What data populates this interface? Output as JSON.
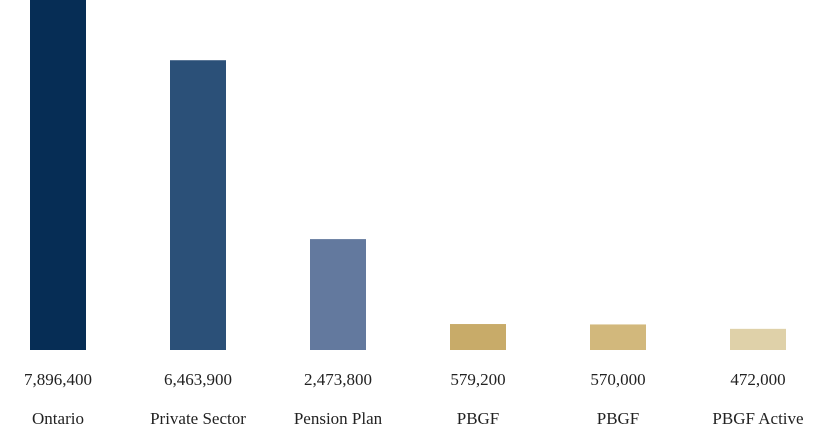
{
  "chart_data": {
    "type": "bar",
    "categories": [
      "Ontario",
      "Private Sector",
      "Pension Plan",
      "PBGF",
      "PBGF",
      "PBGF Active"
    ],
    "values": [
      7896400,
      6463900,
      2473800,
      579200,
      570000,
      472000
    ],
    "value_labels": [
      "7,896,400",
      "6,463,900",
      "2,473,800",
      "579,200",
      "570,000",
      "472,000"
    ],
    "colors": [
      "#062d55",
      "#2b5078",
      "#63799e",
      "#c8ab69",
      "#d2b87c",
      "#dfd1a9"
    ],
    "title": "",
    "xlabel": "",
    "ylabel": "",
    "ylim": [
      0,
      7896400
    ],
    "grid": false,
    "legend": "none"
  }
}
